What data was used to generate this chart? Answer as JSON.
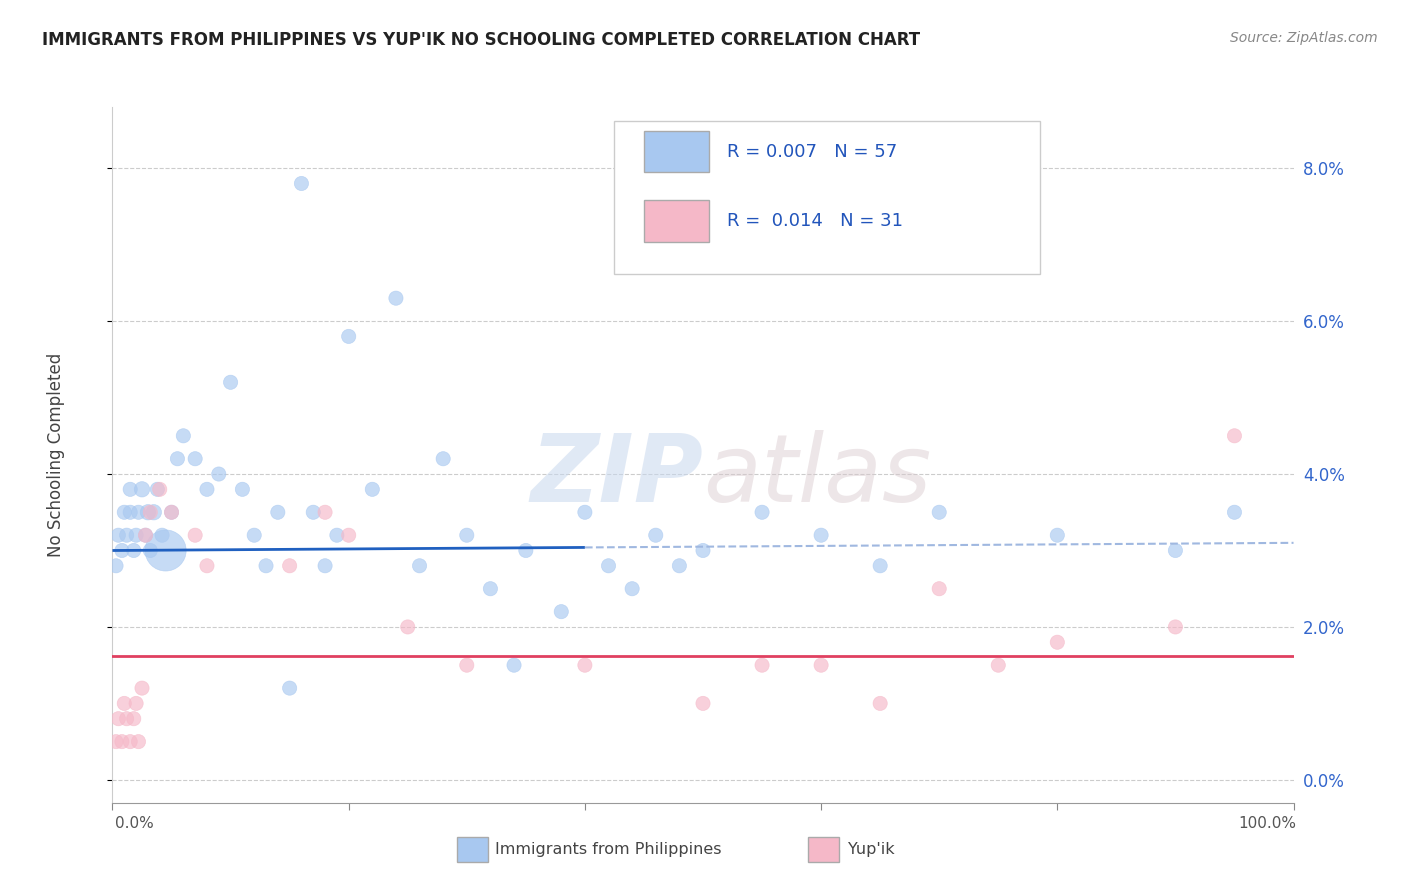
{
  "title": "IMMIGRANTS FROM PHILIPPINES VS YUP'IK NO SCHOOLING COMPLETED CORRELATION CHART",
  "source": "Source: ZipAtlas.com",
  "ylabel": "No Schooling Completed",
  "watermark_zip": "ZIP",
  "watermark_atlas": "atlas",
  "legend_blue_r": "0.007",
  "legend_blue_n": "57",
  "legend_pink_r": "0.014",
  "legend_pink_n": "31",
  "xlim": [
    0,
    100
  ],
  "ylim": [
    -0.3,
    8.8
  ],
  "yticks": [
    0,
    2,
    4,
    6,
    8
  ],
  "xtick_labels": [
    "0.0%",
    "100.0%"
  ],
  "blue_color": "#a8c8f0",
  "pink_color": "#f5b8c8",
  "trend_blue_solid": "#2060c0",
  "trend_blue_dashed": "#a0b8e0",
  "trend_pink": "#e04060",
  "blue_scatter_x": [
    0.3,
    0.5,
    0.8,
    1.0,
    1.2,
    1.5,
    1.5,
    1.8,
    2.0,
    2.2,
    2.5,
    2.8,
    3.0,
    3.2,
    3.5,
    3.8,
    4.2,
    4.5,
    5.0,
    5.5,
    6.0,
    7.0,
    8.0,
    9.0,
    10.0,
    11.0,
    12.0,
    13.0,
    14.0,
    15.0,
    16.0,
    17.0,
    18.0,
    19.0,
    20.0,
    22.0,
    24.0,
    26.0,
    28.0,
    30.0,
    32.0,
    34.0,
    35.0,
    38.0,
    40.0,
    42.0,
    44.0,
    46.0,
    48.0,
    50.0,
    55.0,
    60.0,
    65.0,
    70.0,
    80.0,
    90.0,
    95.0
  ],
  "blue_scatter_y": [
    2.8,
    3.2,
    3.0,
    3.5,
    3.2,
    3.8,
    3.5,
    3.0,
    3.2,
    3.5,
    3.8,
    3.2,
    3.5,
    3.0,
    3.5,
    3.8,
    3.2,
    3.0,
    3.5,
    4.2,
    4.5,
    4.2,
    3.8,
    4.0,
    5.2,
    3.8,
    3.2,
    2.8,
    3.5,
    1.2,
    7.8,
    3.5,
    2.8,
    3.2,
    5.8,
    3.8,
    6.3,
    2.8,
    4.2,
    3.2,
    2.5,
    1.5,
    3.0,
    2.2,
    3.5,
    2.8,
    2.5,
    3.2,
    2.8,
    3.0,
    3.5,
    3.2,
    2.8,
    3.5,
    3.2,
    3.0,
    3.5
  ],
  "blue_scatter_sizes": [
    30,
    30,
    30,
    30,
    30,
    30,
    30,
    30,
    30,
    30,
    35,
    30,
    35,
    30,
    35,
    30,
    30,
    250,
    30,
    30,
    30,
    30,
    30,
    30,
    30,
    30,
    30,
    30,
    30,
    30,
    30,
    30,
    30,
    30,
    30,
    30,
    30,
    30,
    30,
    30,
    30,
    30,
    30,
    30,
    30,
    30,
    30,
    30,
    30,
    30,
    30,
    30,
    30,
    30,
    30,
    30,
    30
  ],
  "pink_scatter_x": [
    0.3,
    0.5,
    0.8,
    1.0,
    1.2,
    1.5,
    1.8,
    2.0,
    2.2,
    2.5,
    2.8,
    3.2,
    4.0,
    5.0,
    7.0,
    8.0,
    15.0,
    18.0,
    20.0,
    25.0,
    30.0,
    40.0,
    50.0,
    55.0,
    60.0,
    65.0,
    70.0,
    75.0,
    80.0,
    90.0,
    95.0
  ],
  "pink_scatter_y": [
    0.5,
    0.8,
    0.5,
    1.0,
    0.8,
    0.5,
    0.8,
    1.0,
    0.5,
    1.2,
    3.2,
    3.5,
    3.8,
    3.5,
    3.2,
    2.8,
    2.8,
    3.5,
    3.2,
    2.0,
    1.5,
    1.5,
    1.0,
    1.5,
    1.5,
    1.0,
    2.5,
    1.5,
    1.8,
    2.0,
    4.5
  ],
  "pink_scatter_sizes": [
    30,
    30,
    30,
    30,
    30,
    30,
    30,
    30,
    30,
    30,
    30,
    30,
    30,
    30,
    30,
    30,
    30,
    30,
    30,
    30,
    30,
    30,
    30,
    30,
    30,
    30,
    30,
    30,
    30,
    30,
    30
  ]
}
